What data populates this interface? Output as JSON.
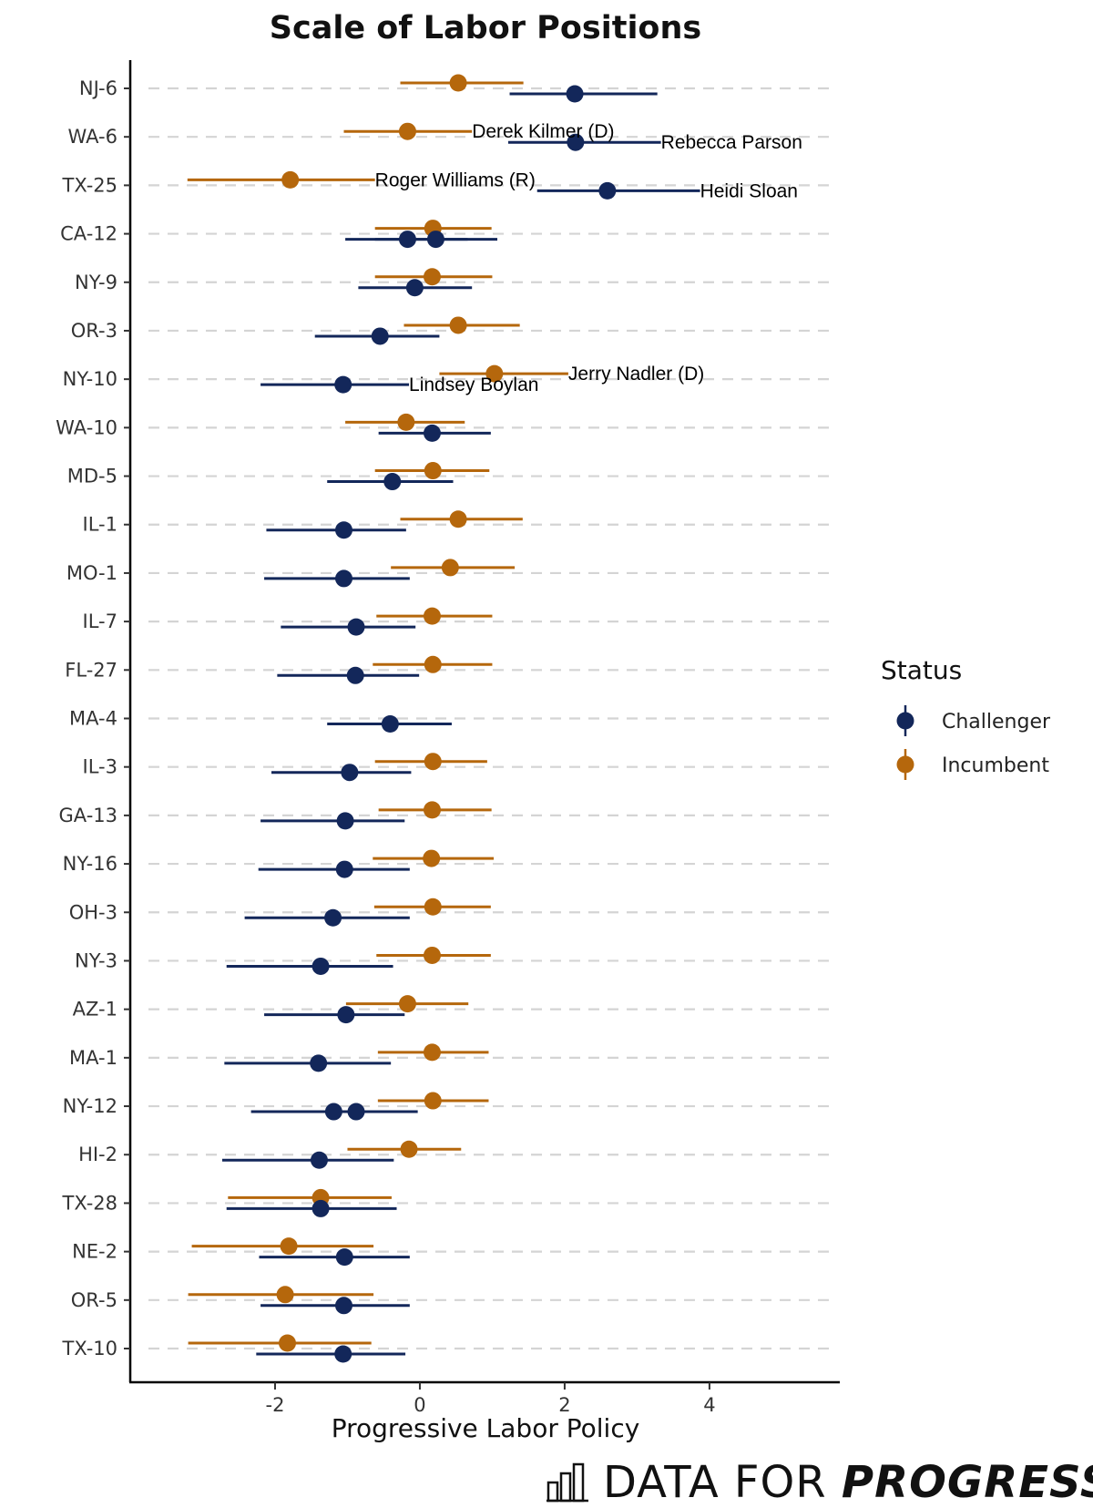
{
  "chart_data": {
    "type": "dot-errorbar",
    "title": "Scale of Labor Positions",
    "xlabel": "Progressive Labor Policy",
    "ylabel": "",
    "xlim": [
      -4.0,
      5.8
    ],
    "xticks": [
      -2,
      0,
      2,
      4
    ],
    "xtick_labels": [
      "-2",
      "0",
      "2",
      "4"
    ],
    "grid": "horizontal dashed",
    "legend": {
      "title": "Status",
      "position": "right",
      "entries": [
        {
          "name": "Challenger",
          "color": "#13275a"
        },
        {
          "name": "Incumbent",
          "color": "#b5670c"
        }
      ]
    },
    "districts": [
      "NJ-6",
      "WA-6",
      "TX-25",
      "CA-12",
      "NY-9",
      "OR-3",
      "NY-10",
      "WA-10",
      "MD-5",
      "IL-1",
      "MO-1",
      "IL-7",
      "FL-27",
      "MA-4",
      "IL-3",
      "GA-13",
      "NY-16",
      "OH-3",
      "NY-3",
      "AZ-1",
      "MA-1",
      "NY-12",
      "HI-2",
      "TX-28",
      "NE-2",
      "OR-5",
      "TX-10"
    ],
    "incumbents": [
      {
        "district": "NJ-6",
        "value": 0.53,
        "low": -0.27,
        "high": 1.43
      },
      {
        "district": "WA-6",
        "value": -0.17,
        "low": -1.05,
        "high": 0.72,
        "label": "Derek Kilmer (D)"
      },
      {
        "district": "TX-25",
        "value": -1.79,
        "low": -3.21,
        "high": -0.62,
        "label": "Roger Williams (R)"
      },
      {
        "district": "CA-12",
        "value": 0.18,
        "low": -0.62,
        "high": 0.99
      },
      {
        "district": "NY-9",
        "value": 0.17,
        "low": -0.62,
        "high": 1.0
      },
      {
        "district": "OR-3",
        "value": 0.53,
        "low": -0.22,
        "high": 1.38
      },
      {
        "district": "NY-10",
        "value": 1.03,
        "low": 0.27,
        "high": 2.05,
        "label": "Jerry Nadler (D)"
      },
      {
        "district": "WA-10",
        "value": -0.19,
        "low": -1.03,
        "high": 0.62
      },
      {
        "district": "MD-5",
        "value": 0.18,
        "low": -0.62,
        "high": 0.96
      },
      {
        "district": "IL-1",
        "value": 0.53,
        "low": -0.27,
        "high": 1.42
      },
      {
        "district": "MO-1",
        "value": 0.42,
        "low": -0.4,
        "high": 1.31
      },
      {
        "district": "IL-7",
        "value": 0.17,
        "low": -0.6,
        "high": 1.0
      },
      {
        "district": "FL-27",
        "value": 0.18,
        "low": -0.65,
        "high": 1.0
      },
      {
        "district": "IL-3",
        "value": 0.18,
        "low": -0.62,
        "high": 0.93
      },
      {
        "district": "GA-13",
        "value": 0.17,
        "low": -0.57,
        "high": 0.99
      },
      {
        "district": "NY-16",
        "value": 0.16,
        "low": -0.65,
        "high": 1.02
      },
      {
        "district": "OH-3",
        "value": 0.18,
        "low": -0.63,
        "high": 0.98
      },
      {
        "district": "NY-3",
        "value": 0.17,
        "low": -0.6,
        "high": 0.98
      },
      {
        "district": "AZ-1",
        "value": -0.17,
        "low": -1.02,
        "high": 0.67
      },
      {
        "district": "MA-1",
        "value": 0.17,
        "low": -0.58,
        "high": 0.95
      },
      {
        "district": "NY-12",
        "value": 0.18,
        "low": -0.58,
        "high": 0.95
      },
      {
        "district": "HI-2",
        "value": -0.15,
        "low": -1.0,
        "high": 0.57
      },
      {
        "district": "TX-28",
        "value": -1.37,
        "low": -2.65,
        "high": -0.39
      },
      {
        "district": "NE-2",
        "value": -1.81,
        "low": -3.15,
        "high": -0.64
      },
      {
        "district": "OR-5",
        "value": -1.86,
        "low": -3.2,
        "high": -0.64
      },
      {
        "district": "TX-10",
        "value": -1.83,
        "low": -3.2,
        "high": -0.67
      }
    ],
    "challengers": [
      {
        "district": "NJ-6",
        "value": 2.14,
        "low": 1.24,
        "high": 3.28
      },
      {
        "district": "WA-6",
        "value": 2.15,
        "low": 1.22,
        "high": 3.33,
        "label": "Rebecca Parson"
      },
      {
        "district": "TX-25",
        "value": 2.59,
        "low": 1.62,
        "high": 3.87,
        "label": "Heidi Sloan"
      },
      {
        "district": "CA-12",
        "value": -0.17,
        "low": -1.03,
        "high": 0.66
      },
      {
        "district": "CA-12",
        "value": 0.22,
        "low": -0.62,
        "high": 1.07
      },
      {
        "district": "NY-9",
        "value": -0.07,
        "low": -0.85,
        "high": 0.72
      },
      {
        "district": "OR-3",
        "value": -0.55,
        "low": -1.45,
        "high": 0.27
      },
      {
        "district": "NY-10",
        "value": -1.06,
        "low": -2.2,
        "high": -0.15,
        "label": "Lindsey Boylan"
      },
      {
        "district": "WA-10",
        "value": 0.17,
        "low": -0.57,
        "high": 0.98
      },
      {
        "district": "MD-5",
        "value": -0.38,
        "low": -1.28,
        "high": 0.46
      },
      {
        "district": "IL-1",
        "value": -1.05,
        "low": -2.12,
        "high": -0.19
      },
      {
        "district": "MO-1",
        "value": -1.05,
        "low": -2.15,
        "high": -0.14
      },
      {
        "district": "IL-7",
        "value": -0.88,
        "low": -1.92,
        "high": -0.06
      },
      {
        "district": "FL-27",
        "value": -0.89,
        "low": -1.97,
        "high": -0.01
      },
      {
        "district": "MA-4",
        "value": -0.41,
        "low": -1.28,
        "high": 0.44
      },
      {
        "district": "IL-3",
        "value": -0.97,
        "low": -2.05,
        "high": -0.12
      },
      {
        "district": "GA-13",
        "value": -1.03,
        "low": -2.2,
        "high": -0.21
      },
      {
        "district": "NY-16",
        "value": -1.04,
        "low": -2.23,
        "high": -0.14
      },
      {
        "district": "OH-3",
        "value": -1.2,
        "low": -2.42,
        "high": -0.14
      },
      {
        "district": "NY-3",
        "value": -1.37,
        "low": -2.67,
        "high": -0.37
      },
      {
        "district": "AZ-1",
        "value": -1.02,
        "low": -2.15,
        "high": -0.21
      },
      {
        "district": "MA-1",
        "value": -1.4,
        "low": -2.7,
        "high": -0.4
      },
      {
        "district": "NY-12",
        "value": -1.19,
        "low": -2.33,
        "high": -0.03
      },
      {
        "district": "NY-12",
        "value": -0.88,
        "low": -2.33,
        "high": -0.03
      },
      {
        "district": "HI-2",
        "value": -1.39,
        "low": -2.73,
        "high": -0.36
      },
      {
        "district": "TX-28",
        "value": -1.37,
        "low": -2.67,
        "high": -0.32
      },
      {
        "district": "NE-2",
        "value": -1.04,
        "low": -2.22,
        "high": -0.14
      },
      {
        "district": "OR-5",
        "value": -1.05,
        "low": -2.2,
        "high": -0.14
      },
      {
        "district": "TX-10",
        "value": -1.06,
        "low": -2.26,
        "high": -0.2
      }
    ]
  },
  "branding": {
    "name_regular": "DATA FOR",
    "name_bold": "PROGRESS",
    "logo_icon": "bar-chart-icon"
  }
}
